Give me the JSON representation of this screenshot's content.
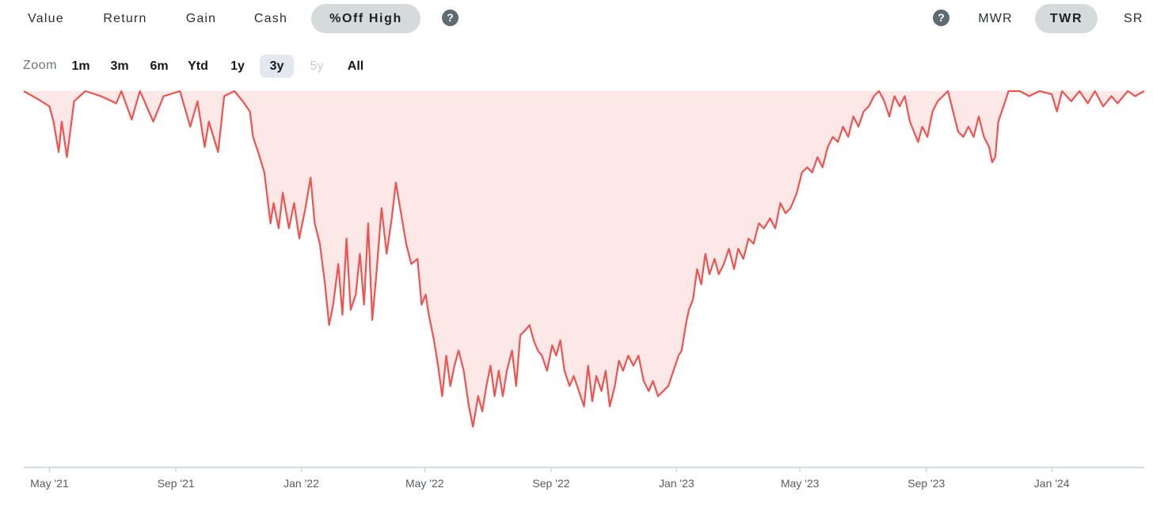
{
  "toolbar": {
    "metrics": [
      {
        "label": "Value",
        "active": false
      },
      {
        "label": "Return",
        "active": false
      },
      {
        "label": "Gain",
        "active": false
      },
      {
        "label": "Cash",
        "active": false
      },
      {
        "label": "%Off High",
        "active": true
      }
    ],
    "help_glyph": "?",
    "methods": [
      {
        "label": "MWR",
        "active": false
      },
      {
        "label": "TWR",
        "active": true
      },
      {
        "label": "SR",
        "active": false
      }
    ]
  },
  "zoom": {
    "label": "Zoom",
    "options": [
      {
        "label": "1m",
        "state": "normal"
      },
      {
        "label": "3m",
        "state": "normal"
      },
      {
        "label": "6m",
        "state": "normal"
      },
      {
        "label": "Ytd",
        "state": "normal"
      },
      {
        "label": "1y",
        "state": "normal"
      },
      {
        "label": "3y",
        "state": "active"
      },
      {
        "label": "5y",
        "state": "disabled"
      },
      {
        "label": "All",
        "state": "normal"
      }
    ]
  },
  "chart_data": {
    "type": "area",
    "title": "",
    "xlabel": "",
    "ylabel": "",
    "x_axis_ticks": [
      "May '21",
      "Sep '21",
      "Jan '22",
      "May '22",
      "Sep '22",
      "Jan '23",
      "May '23",
      "Sep '23",
      "Jan '24"
    ],
    "x_range": [
      "2021-04-06",
      "2024-03-31"
    ],
    "y_range": [
      -37,
      0
    ],
    "y_axis_visible": false,
    "grid": false,
    "line_color": "#ef5350",
    "fill_color": "#fde8e8",
    "series": [
      {
        "values": [
          [
            "2021-04-06",
            0
          ],
          [
            "2021-04-20",
            -0.8
          ],
          [
            "2021-05-01",
            -1.5
          ],
          [
            "2021-05-05",
            -3
          ],
          [
            "2021-05-10",
            -6
          ],
          [
            "2021-05-13",
            -3
          ],
          [
            "2021-05-18",
            -6.5
          ],
          [
            "2021-05-25",
            -1
          ],
          [
            "2021-06-05",
            0
          ],
          [
            "2021-06-20",
            -0.5
          ],
          [
            "2021-07-05",
            -1.2
          ],
          [
            "2021-07-10",
            0
          ],
          [
            "2021-07-20",
            -2.8
          ],
          [
            "2021-07-28",
            0
          ],
          [
            "2021-08-10",
            -3
          ],
          [
            "2021-08-20",
            -0.5
          ],
          [
            "2021-09-05",
            0
          ],
          [
            "2021-09-15",
            -3.5
          ],
          [
            "2021-09-22",
            -1
          ],
          [
            "2021-09-29",
            -5.5
          ],
          [
            "2021-10-03",
            -3
          ],
          [
            "2021-10-12",
            -6
          ],
          [
            "2021-10-18",
            -0.5
          ],
          [
            "2021-10-28",
            0
          ],
          [
            "2021-11-05",
            -1
          ],
          [
            "2021-11-12",
            -2
          ],
          [
            "2021-11-15",
            -4.5
          ],
          [
            "2021-11-20",
            -6
          ],
          [
            "2021-11-26",
            -8
          ],
          [
            "2021-12-02",
            -13
          ],
          [
            "2021-12-05",
            -11
          ],
          [
            "2021-12-10",
            -13.5
          ],
          [
            "2021-12-14",
            -10
          ],
          [
            "2021-12-20",
            -13.5
          ],
          [
            "2021-12-25",
            -11
          ],
          [
            "2021-12-30",
            -14.5
          ],
          [
            "2022-01-05",
            -11.5
          ],
          [
            "2022-01-10",
            -8.5
          ],
          [
            "2022-01-14",
            -13
          ],
          [
            "2022-01-19",
            -15
          ],
          [
            "2022-01-24",
            -19
          ],
          [
            "2022-01-28",
            -23
          ],
          [
            "2022-02-01",
            -21
          ],
          [
            "2022-02-06",
            -17
          ],
          [
            "2022-02-10",
            -22
          ],
          [
            "2022-02-14",
            -14.5
          ],
          [
            "2022-02-18",
            -21.5
          ],
          [
            "2022-02-23",
            -20
          ],
          [
            "2022-02-27",
            -16
          ],
          [
            "2022-03-03",
            -21
          ],
          [
            "2022-03-07",
            -13
          ],
          [
            "2022-03-11",
            -22.5
          ],
          [
            "2022-03-15",
            -18
          ],
          [
            "2022-03-20",
            -11.5
          ],
          [
            "2022-03-25",
            -16
          ],
          [
            "2022-03-30",
            -12.5
          ],
          [
            "2022-04-03",
            -9
          ],
          [
            "2022-04-08",
            -12
          ],
          [
            "2022-04-13",
            -15
          ],
          [
            "2022-04-18",
            -17
          ],
          [
            "2022-04-24",
            -16.5
          ],
          [
            "2022-04-28",
            -21
          ],
          [
            "2022-05-02",
            -20
          ],
          [
            "2022-05-05",
            -22
          ],
          [
            "2022-05-10",
            -24.5
          ],
          [
            "2022-05-14",
            -27
          ],
          [
            "2022-05-18",
            -30
          ],
          [
            "2022-05-22",
            -26
          ],
          [
            "2022-05-26",
            -29
          ],
          [
            "2022-05-30",
            -27
          ],
          [
            "2022-06-03",
            -25.5
          ],
          [
            "2022-06-08",
            -27.5
          ],
          [
            "2022-06-13",
            -31
          ],
          [
            "2022-06-17",
            -33
          ],
          [
            "2022-06-22",
            -30
          ],
          [
            "2022-06-26",
            -31.5
          ],
          [
            "2022-06-30",
            -29
          ],
          [
            "2022-07-04",
            -27
          ],
          [
            "2022-07-08",
            -30
          ],
          [
            "2022-07-12",
            -27.5
          ],
          [
            "2022-07-16",
            -30
          ],
          [
            "2022-07-20",
            -27.5
          ],
          [
            "2022-07-25",
            -25.5
          ],
          [
            "2022-07-29",
            -29
          ],
          [
            "2022-08-02",
            -24
          ],
          [
            "2022-08-07",
            -23.5
          ],
          [
            "2022-08-11",
            -23
          ],
          [
            "2022-08-15",
            -24.5
          ],
          [
            "2022-08-19",
            -25.5
          ],
          [
            "2022-08-23",
            -26
          ],
          [
            "2022-08-28",
            -27.5
          ],
          [
            "2022-09-02",
            -25
          ],
          [
            "2022-09-06",
            -26
          ],
          [
            "2022-09-10",
            -24.5
          ],
          [
            "2022-09-14",
            -27.5
          ],
          [
            "2022-09-19",
            -29
          ],
          [
            "2022-09-23",
            -28
          ],
          [
            "2022-09-28",
            -29.5
          ],
          [
            "2022-10-03",
            -31
          ],
          [
            "2022-10-07",
            -27
          ],
          [
            "2022-10-11",
            -30.5
          ],
          [
            "2022-10-15",
            -28
          ],
          [
            "2022-10-20",
            -29.5
          ],
          [
            "2022-10-24",
            -27.5
          ],
          [
            "2022-10-28",
            -31
          ],
          [
            "2022-11-02",
            -29
          ],
          [
            "2022-11-06",
            -26.5
          ],
          [
            "2022-11-10",
            -27.5
          ],
          [
            "2022-11-15",
            -26
          ],
          [
            "2022-11-20",
            -27
          ],
          [
            "2022-11-25",
            -26
          ],
          [
            "2022-11-30",
            -28.5
          ],
          [
            "2022-12-05",
            -29.5
          ],
          [
            "2022-12-09",
            -28.5
          ],
          [
            "2022-12-14",
            -30
          ],
          [
            "2022-12-19",
            -29.5
          ],
          [
            "2022-12-24",
            -29
          ],
          [
            "2022-12-29",
            -27.5
          ],
          [
            "2023-01-03",
            -26
          ],
          [
            "2023-01-06",
            -25.5
          ],
          [
            "2023-01-10",
            -23
          ],
          [
            "2023-01-13",
            -21.5
          ],
          [
            "2023-01-17",
            -20.5
          ],
          [
            "2023-01-21",
            -17.5
          ],
          [
            "2023-01-25",
            -19
          ],
          [
            "2023-01-29",
            -16
          ],
          [
            "2023-02-02",
            -18
          ],
          [
            "2023-02-07",
            -16.5
          ],
          [
            "2023-02-11",
            -18
          ],
          [
            "2023-02-16",
            -17
          ],
          [
            "2023-02-21",
            -15.5
          ],
          [
            "2023-02-26",
            -17.5
          ],
          [
            "2023-03-02",
            -15.5
          ],
          [
            "2023-03-07",
            -16.5
          ],
          [
            "2023-03-12",
            -14.5
          ],
          [
            "2023-03-17",
            -15
          ],
          [
            "2023-03-22",
            -13
          ],
          [
            "2023-03-27",
            -13.5
          ],
          [
            "2023-04-02",
            -12.5
          ],
          [
            "2023-04-07",
            -13.5
          ],
          [
            "2023-04-12",
            -11
          ],
          [
            "2023-04-17",
            -12
          ],
          [
            "2023-04-22",
            -11.5
          ],
          [
            "2023-04-28",
            -10
          ],
          [
            "2023-05-03",
            -8
          ],
          [
            "2023-05-08",
            -7.5
          ],
          [
            "2023-05-13",
            -8
          ],
          [
            "2023-05-18",
            -6.5
          ],
          [
            "2023-05-23",
            -7.5
          ],
          [
            "2023-05-28",
            -5.5
          ],
          [
            "2023-06-02",
            -4.5
          ],
          [
            "2023-06-07",
            -5
          ],
          [
            "2023-06-12",
            -3.5
          ],
          [
            "2023-06-17",
            -4.5
          ],
          [
            "2023-06-22",
            -2.5
          ],
          [
            "2023-06-27",
            -3.5
          ],
          [
            "2023-07-02",
            -2
          ],
          [
            "2023-07-07",
            -1.5
          ],
          [
            "2023-07-12",
            -0.5
          ],
          [
            "2023-07-17",
            0
          ],
          [
            "2023-07-22",
            -1
          ],
          [
            "2023-07-27",
            -2.5
          ],
          [
            "2023-08-01",
            -0.5
          ],
          [
            "2023-08-06",
            -1.5
          ],
          [
            "2023-08-11",
            -0.5
          ],
          [
            "2023-08-16",
            -3
          ],
          [
            "2023-08-20",
            -4
          ],
          [
            "2023-08-24",
            -5
          ],
          [
            "2023-08-28",
            -3.5
          ],
          [
            "2023-09-02",
            -4.5
          ],
          [
            "2023-09-07",
            -2
          ],
          [
            "2023-09-12",
            -1
          ],
          [
            "2023-09-17",
            -0.5
          ],
          [
            "2023-09-22",
            0
          ],
          [
            "2023-09-27",
            -2
          ],
          [
            "2023-10-02",
            -4
          ],
          [
            "2023-10-07",
            -4.5
          ],
          [
            "2023-10-12",
            -3.5
          ],
          [
            "2023-10-17",
            -4.5
          ],
          [
            "2023-10-22",
            -2.5
          ],
          [
            "2023-10-27",
            -4.5
          ],
          [
            "2023-11-01",
            -5.5
          ],
          [
            "2023-11-04",
            -7
          ],
          [
            "2023-11-07",
            -6.5
          ],
          [
            "2023-11-10",
            -3
          ],
          [
            "2023-11-15",
            -1.5
          ],
          [
            "2023-11-20",
            0
          ],
          [
            "2023-12-01",
            0
          ],
          [
            "2023-12-10",
            -0.5
          ],
          [
            "2023-12-20",
            0
          ],
          [
            "2024-01-01",
            -0.3
          ],
          [
            "2024-01-06",
            -2
          ],
          [
            "2024-01-11",
            0
          ],
          [
            "2024-01-20",
            -1
          ],
          [
            "2024-01-28",
            0
          ],
          [
            "2024-02-05",
            -1.2
          ],
          [
            "2024-02-12",
            0
          ],
          [
            "2024-02-20",
            -1.5
          ],
          [
            "2024-02-28",
            -0.5
          ],
          [
            "2024-03-05",
            -1.2
          ],
          [
            "2024-03-15",
            0
          ],
          [
            "2024-03-22",
            -0.5
          ],
          [
            "2024-03-31",
            0
          ]
        ]
      }
    ]
  }
}
